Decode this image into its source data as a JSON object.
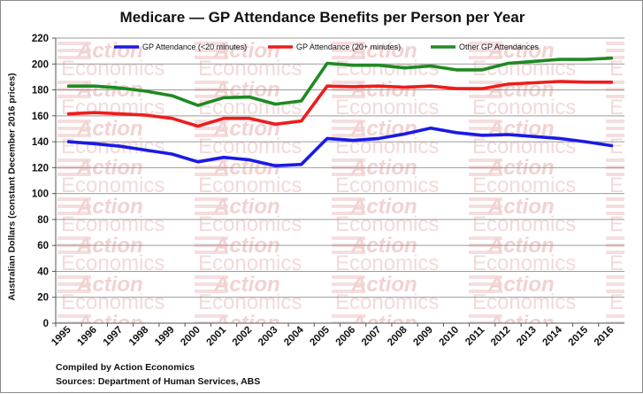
{
  "chart_data": {
    "type": "line",
    "title": "Medicare — GP Attendance Benefits per Person per Year",
    "xlabel": "",
    "ylabel": "Australian Dollars (constant December 2016 prices)",
    "categories": [
      "1995",
      "1996",
      "1997",
      "1998",
      "1999",
      "2000",
      "2001",
      "2002",
      "2003",
      "2004",
      "2005",
      "2006",
      "2007",
      "2008",
      "2009",
      "2010",
      "2011",
      "2012",
      "2013",
      "2014",
      "2015",
      "2016"
    ],
    "yticks": [
      "0",
      "20",
      "40",
      "60",
      "80",
      "100",
      "120",
      "140",
      "160",
      "180",
      "200",
      "220"
    ],
    "ylim": [
      0,
      220
    ],
    "grid": true,
    "legend_position": "top",
    "series": [
      {
        "name": "GP Attendance (<20 minutes)",
        "color": "#1a1ae6",
        "values": [
          140,
          138.5,
          136.5,
          133.5,
          130.5,
          124.5,
          128,
          126,
          121.5,
          122.5,
          142.5,
          141,
          142.5,
          146,
          150.5,
          147,
          145,
          145.5,
          144,
          142.5,
          140,
          137
        ]
      },
      {
        "name": "GP Attendance (20+ minutes)",
        "color": "#ee1c1c",
        "values": [
          161.5,
          162.5,
          161.5,
          160.5,
          158,
          152,
          158,
          158,
          153.5,
          156,
          183,
          182.5,
          183,
          182,
          183,
          181,
          181,
          184.5,
          185.5,
          186.5,
          186,
          186
        ]
      },
      {
        "name": "Other GP Attendances",
        "color": "#1e8a22",
        "values": [
          183,
          183,
          181.5,
          179,
          175.5,
          168,
          174,
          174.5,
          169,
          171.5,
          200.5,
          199,
          199,
          197,
          198.5,
          195.5,
          195.5,
          200.5,
          202,
          203.5,
          203.5,
          204.5
        ]
      }
    ]
  },
  "watermark": {
    "line1": "Action",
    "line2": "Economics"
  },
  "footnotes": {
    "compiled_by": "Compiled by Action Economics",
    "sources": "Sources: Department of Human Services, ABS"
  }
}
